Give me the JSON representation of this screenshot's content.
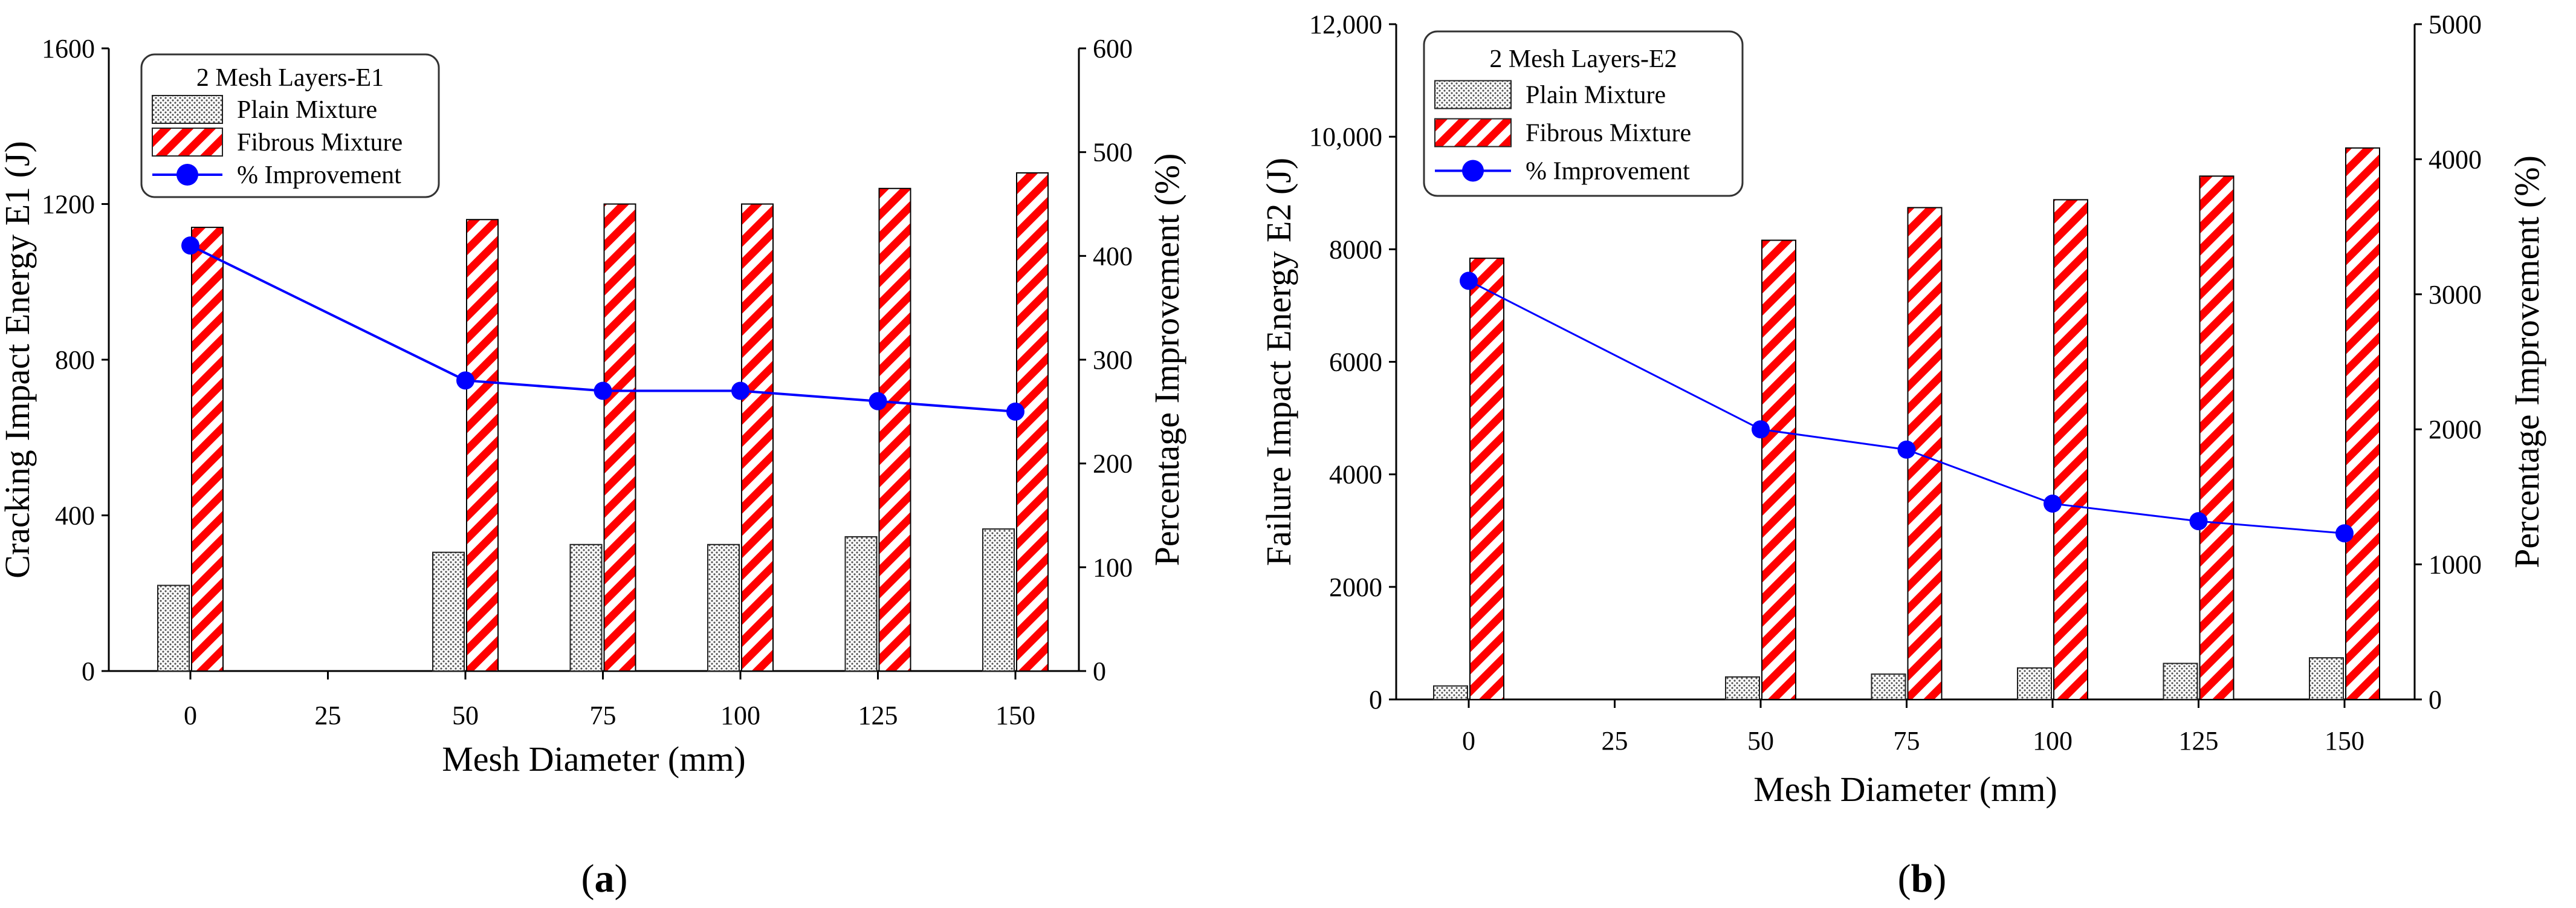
{
  "chart_data": [
    {
      "type": "bar",
      "panel_label": "a",
      "title": "",
      "xlabel": "Mesh Diameter (mm)",
      "ylabel": "Cracking Impact Energy E1 (J)",
      "y2label": "Percentage Improvement (%)",
      "categories": [
        "0",
        "25",
        "50",
        "75",
        "100",
        "125",
        "150"
      ],
      "ylim": [
        0,
        1600
      ],
      "yticks": [
        0,
        400,
        800,
        1200,
        1600
      ],
      "ytick_labels": [
        "0",
        "400",
        "800",
        "1200",
        "1600"
      ],
      "y2lim": [
        0,
        600
      ],
      "y2ticks": [
        0,
        100,
        200,
        300,
        400,
        500,
        600
      ],
      "y2tick_labels": [
        "0",
        "100",
        "200",
        "300",
        "400",
        "500",
        "600"
      ],
      "legend_title": "2 Mesh Layers-E1",
      "legend_position": "top-left",
      "series": [
        {
          "name": "Plain Mixture",
          "kind": "bar",
          "color": "#cccccc",
          "values": [
            220,
            null,
            305,
            325,
            325,
            345,
            365
          ]
        },
        {
          "name": "Fibrous Mixture",
          "kind": "bar",
          "color": "#ff0000",
          "values": [
            1140,
            null,
            1160,
            1200,
            1200,
            1240,
            1280
          ]
        },
        {
          "name": "% Improvement",
          "kind": "line",
          "axis": "right",
          "color": "#0000ff",
          "values": [
            410,
            null,
            280,
            270,
            270,
            260,
            250
          ]
        }
      ]
    },
    {
      "type": "bar",
      "panel_label": "b",
      "title": "",
      "xlabel": "Mesh Diameter (mm)",
      "ylabel": "Failure Impact Energy E2 (J)",
      "y2label": "Percentage Improvement (%)",
      "categories": [
        "0",
        "25",
        "50",
        "75",
        "100",
        "125",
        "150"
      ],
      "ylim": [
        0,
        12000
      ],
      "yticks": [
        0,
        2000,
        4000,
        6000,
        8000,
        10000,
        12000
      ],
      "ytick_labels": [
        "0",
        "2000",
        "4000",
        "6000",
        "8000",
        "10,000",
        "12,000"
      ],
      "y2lim": [
        0,
        5000
      ],
      "y2ticks": [
        0,
        1000,
        2000,
        3000,
        4000,
        5000
      ],
      "y2tick_labels": [
        "0",
        "1000",
        "2000",
        "3000",
        "4000",
        "5000"
      ],
      "legend_title": "2 Mesh Layers-E2",
      "legend_position": "top-left",
      "series": [
        {
          "name": "Plain Mixture",
          "kind": "bar",
          "color": "#cccccc",
          "values": [
            240,
            null,
            400,
            450,
            560,
            640,
            740
          ]
        },
        {
          "name": "Fibrous Mixture",
          "kind": "bar",
          "color": "#ff0000",
          "values": [
            7840,
            null,
            8160,
            8740,
            8880,
            9300,
            9800
          ]
        },
        {
          "name": "% Improvement",
          "kind": "line",
          "axis": "right",
          "color": "#0000ff",
          "values": [
            3100,
            null,
            2000,
            1850,
            1450,
            1320,
            1230
          ]
        }
      ]
    }
  ],
  "panel_labels": [
    {
      "open": "(",
      "letter": "a",
      "close": ")"
    },
    {
      "open": "(",
      "letter": "b",
      "close": ")"
    }
  ]
}
